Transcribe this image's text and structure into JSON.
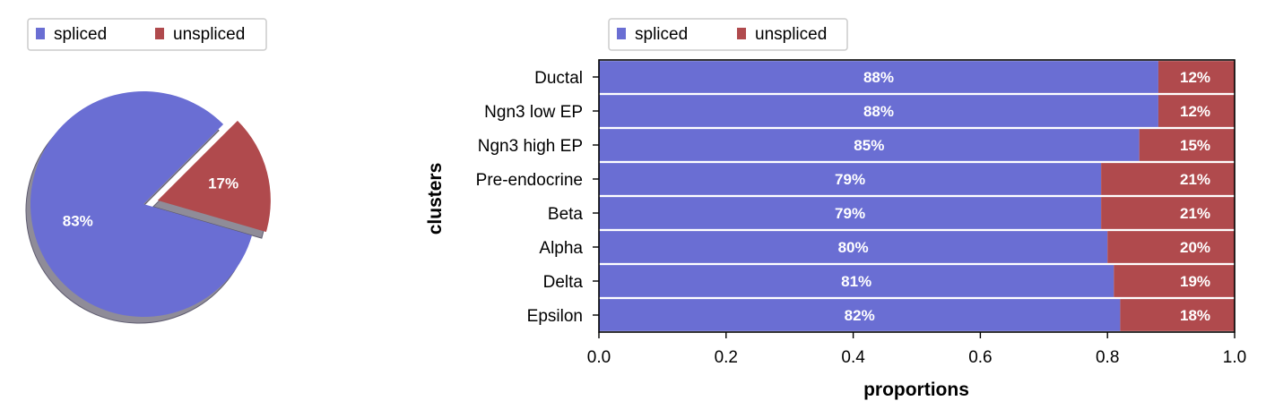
{
  "colors": {
    "spliced": "#6a6ed3",
    "unspliced": "#b04a4d",
    "shadow": "#8f8c98"
  },
  "legend_labels": [
    "spliced",
    "unspliced"
  ],
  "chart_data": [
    {
      "type": "pie",
      "labels": [
        "spliced",
        "unspliced"
      ],
      "values": [
        83,
        17
      ],
      "value_labels": [
        "83%",
        "17%"
      ],
      "explode": "unspliced",
      "shadow": true,
      "legend": "top-left"
    },
    {
      "type": "bar",
      "orientation": "horizontal",
      "stacked": true,
      "categories": [
        "Ductal",
        "Ngn3 low EP",
        "Ngn3 high EP",
        "Pre-endocrine",
        "Beta",
        "Alpha",
        "Delta",
        "Epsilon"
      ],
      "series": [
        {
          "name": "spliced",
          "values": [
            0.88,
            0.88,
            0.85,
            0.79,
            0.79,
            0.8,
            0.81,
            0.82
          ],
          "labels": [
            "88%",
            "88%",
            "85%",
            "79%",
            "79%",
            "80%",
            "81%",
            "82%"
          ]
        },
        {
          "name": "unspliced",
          "values": [
            0.12,
            0.12,
            0.15,
            0.21,
            0.21,
            0.2,
            0.19,
            0.18
          ],
          "labels": [
            "12%",
            "12%",
            "15%",
            "21%",
            "21%",
            "20%",
            "19%",
            "18%"
          ]
        }
      ],
      "xlabel": "proportions",
      "ylabel": "clusters",
      "xlim": [
        0,
        1
      ],
      "xticks": [
        "0.0",
        "0.2",
        "0.4",
        "0.6",
        "0.8",
        "1.0"
      ],
      "grid": false,
      "legend": "top-left"
    }
  ]
}
